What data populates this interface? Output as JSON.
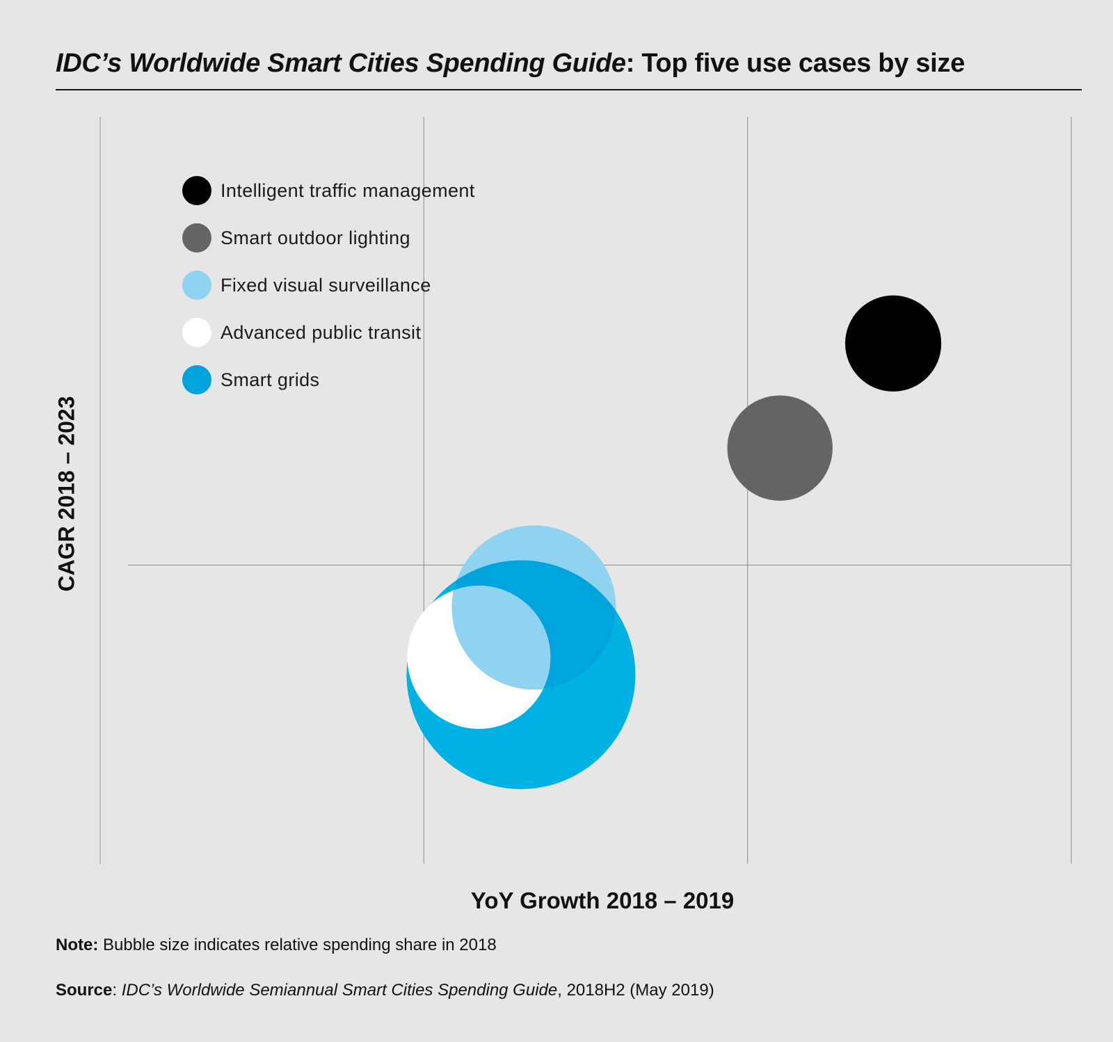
{
  "title": {
    "italic_part": "IDC’s Worldwide Smart Cities Spending Guide",
    "plain_part": ": Top five use cases by size"
  },
  "chart_data": {
    "type": "scatter",
    "subtype": "bubble",
    "title": "IDC’s Worldwide Smart Cities Spending Guide: Top five use cases by size",
    "xlabel": "YoY Growth 2018 – 2019",
    "ylabel": "CAGR 2018 – 2023",
    "xlim": [
      0,
      3
    ],
    "ylim": [
      0,
      3
    ],
    "grid": true,
    "tick_labels_shown": false,
    "legend_position": "top-left",
    "series": [
      {
        "name": "Smart grids",
        "x": 1.3,
        "y": 0.76,
        "size": 2.55,
        "color": "#00b2e3"
      },
      {
        "name": "Advanced public transit",
        "x": 1.17,
        "y": 0.83,
        "size": 1.0,
        "color": "#ffffff"
      },
      {
        "name": "Fixed visual surveillance",
        "x": 1.34,
        "y": 1.03,
        "size": 1.31,
        "color": "#8fd3f0"
      },
      {
        "name": "Smart outdoor lighting",
        "x": 2.1,
        "y": 1.67,
        "size": 0.54,
        "color": "#646567"
      },
      {
        "name": "Intelligent traffic management",
        "x": 2.45,
        "y": 2.09,
        "size": 0.45,
        "color": "#000000"
      }
    ],
    "overlap_color": "#00a4dc"
  },
  "legend": {
    "items": [
      {
        "label": "Intelligent traffic management",
        "color": "#000000"
      },
      {
        "label": "Smart outdoor lighting",
        "color": "#646567"
      },
      {
        "label": "Fixed visual surveillance",
        "color": "#8fd3f0"
      },
      {
        "label": "Advanced public transit",
        "color": "#ffffff"
      },
      {
        "label": "Smart grids",
        "color": "#00a4dc"
      }
    ]
  },
  "note": {
    "label": "Note:",
    "text": " Bubble size indicates relative spending share in 2018"
  },
  "source": {
    "label": "Source",
    "separator": ": ",
    "italic_text": "IDC’s Worldwide Semiannual Smart Cities Spending Guide",
    "text": ", 2018H2 (May 2019)"
  }
}
